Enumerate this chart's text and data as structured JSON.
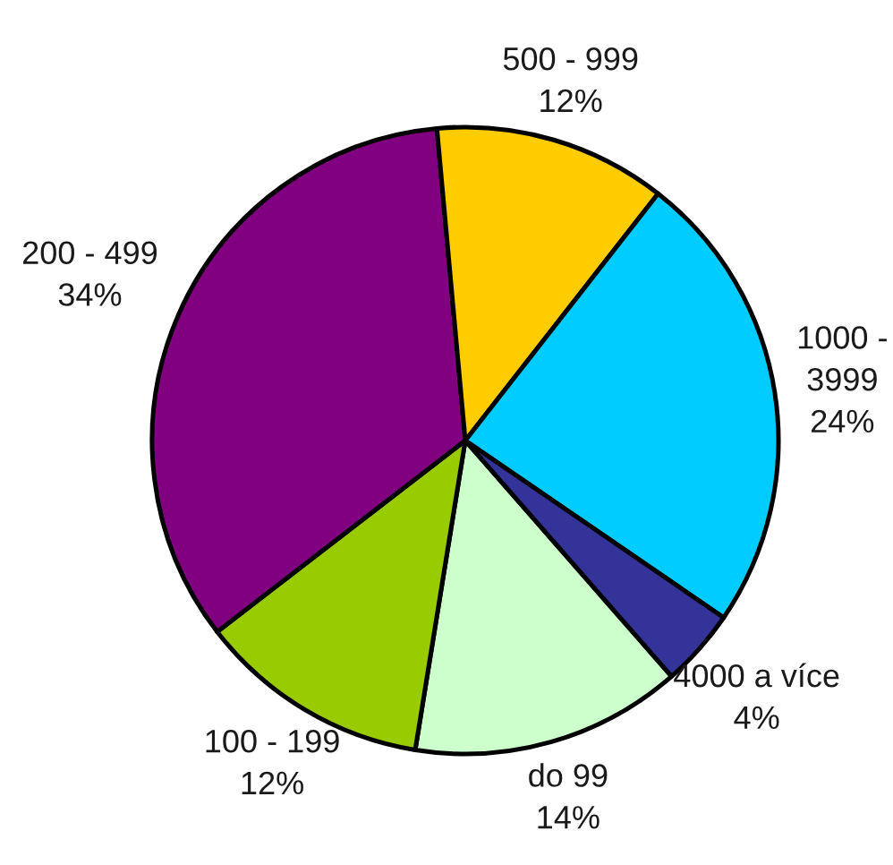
{
  "chart_data": {
    "type": "pie",
    "categories": [
      "do 99",
      "100 - 199",
      "200 - 499",
      "500 - 999",
      "1000 - 3999",
      "4000 a více"
    ],
    "values": [
      14,
      12,
      34,
      12,
      24,
      4
    ],
    "colors": [
      "#ccffcc",
      "#99cc00",
      "#800080",
      "#ffcc00",
      "#00ccff",
      "#333399"
    ],
    "value_labels": [
      "14%",
      "12%",
      "34%",
      "12%",
      "24%",
      "4%"
    ]
  }
}
